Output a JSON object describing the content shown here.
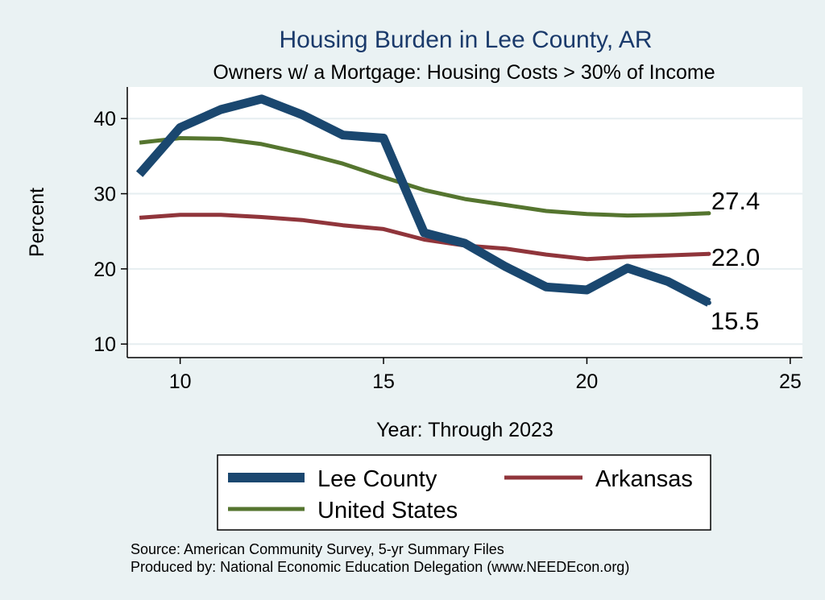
{
  "chart_data": {
    "type": "line",
    "title": "Housing Burden in Lee County, AR",
    "subtitle": "Owners w/ a Mortgage: Housing Costs > 30% of Income",
    "xlabel": "Year: Through 2023",
    "ylabel": "Percent",
    "xlim": [
      8.7,
      25.3
    ],
    "ylim": [
      8.2,
      44.2
    ],
    "xticks": [
      10,
      15,
      20,
      25
    ],
    "yticks": [
      10,
      20,
      30,
      40
    ],
    "grid": true,
    "legend_position": "bottom",
    "series": [
      {
        "name": "Lee County",
        "color": "#1a476f",
        "x": [
          9,
          10,
          11,
          12,
          13,
          14,
          15,
          16,
          17,
          18,
          19,
          20,
          21,
          22,
          23
        ],
        "y": [
          32.6,
          38.8,
          41.2,
          42.6,
          40.5,
          37.8,
          37.4,
          24.8,
          23.4,
          20.3,
          17.6,
          17.2,
          20.1,
          18.3,
          15.5
        ],
        "end_label": "15.5"
      },
      {
        "name": "Arkansas",
        "color": "#90353b",
        "x": [
          9,
          10,
          11,
          12,
          13,
          14,
          15,
          16,
          17,
          18,
          19,
          20,
          21,
          22,
          23
        ],
        "y": [
          26.8,
          27.2,
          27.2,
          26.9,
          26.5,
          25.8,
          25.3,
          23.9,
          23.1,
          22.7,
          21.9,
          21.3,
          21.6,
          21.8,
          22.0
        ],
        "end_label": "22.0"
      },
      {
        "name": "United States",
        "color": "#55752f",
        "x": [
          9,
          10,
          11,
          12,
          13,
          14,
          15,
          16,
          17,
          18,
          19,
          20,
          21,
          22,
          23
        ],
        "y": [
          36.8,
          37.4,
          37.3,
          36.6,
          35.4,
          34.0,
          32.2,
          30.5,
          29.3,
          28.5,
          27.7,
          27.3,
          27.1,
          27.2,
          27.4
        ],
        "end_label": "27.4"
      }
    ],
    "source_lines": [
      "Source: American Community Survey, 5-yr Summary Files",
      "Produced by: National Economic Education Delegation (www.NEEDEcon.org)"
    ]
  }
}
